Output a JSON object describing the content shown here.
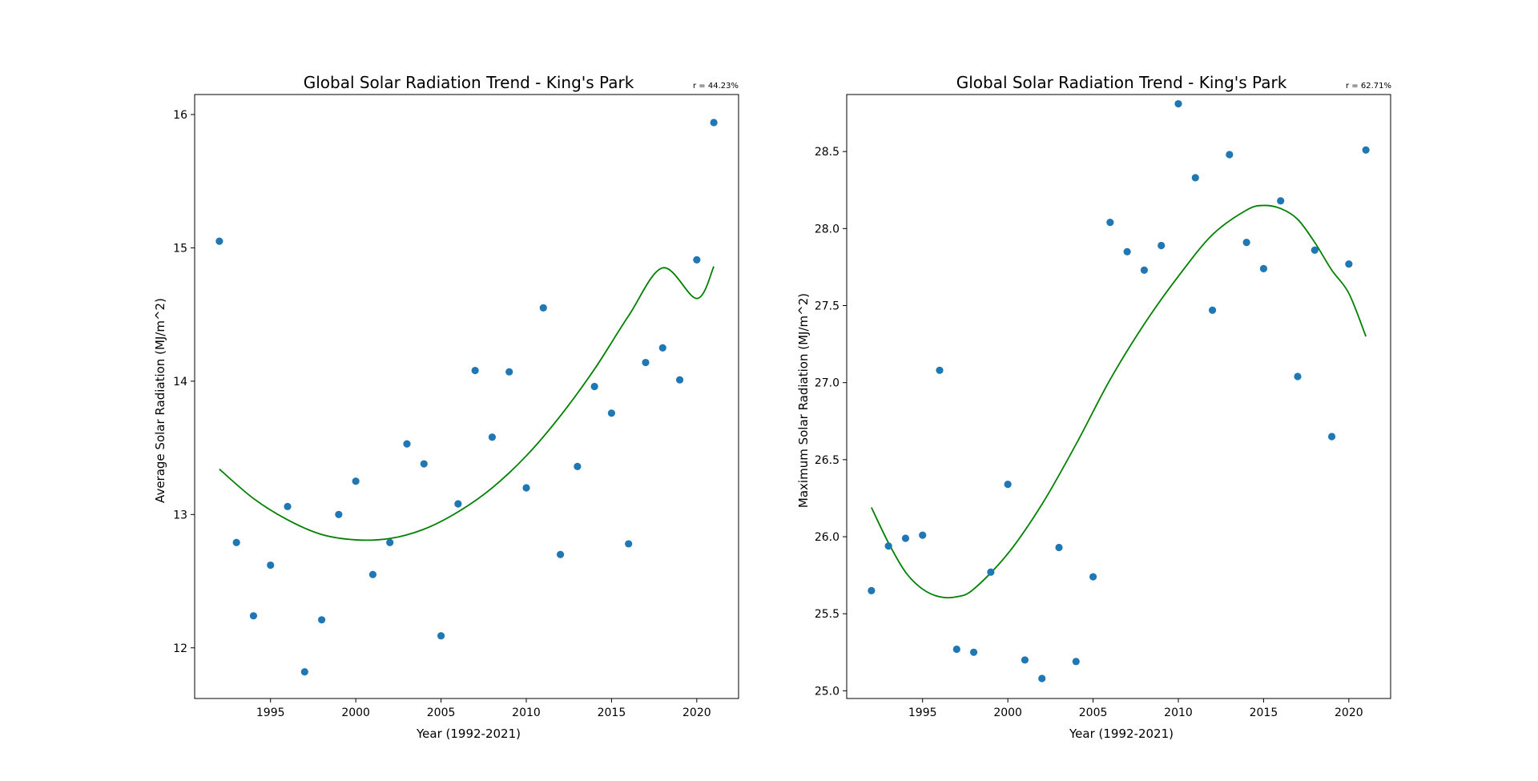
{
  "chart_data": [
    {
      "type": "scatter",
      "title": "Global Solar Radiation Trend - King's Park",
      "annotation": "r = 44.23%",
      "xlabel": "Year (1992-2021)",
      "ylabel": "Average Solar Radiation (MJ/m^2)",
      "xlim": [
        1990.55,
        2022.45
      ],
      "ylim": [
        11.62,
        16.15
      ],
      "xticks": [
        1995,
        2000,
        2005,
        2010,
        2015,
        2020
      ],
      "yticks": [
        12,
        13,
        14,
        15,
        16
      ],
      "grid": false,
      "point_color": "#1f77b4",
      "trend_color": "#008000",
      "series": [
        {
          "x": [
            1992,
            1993,
            1994,
            1995,
            1996,
            1997,
            1998,
            1999,
            2000,
            2001,
            2002,
            2003,
            2004,
            2005,
            2006,
            2007,
            2008,
            2009,
            2010,
            2011,
            2012,
            2013,
            2014,
            2015,
            2016,
            2017,
            2018,
            2019,
            2020,
            2021
          ],
          "y": [
            15.05,
            12.79,
            12.24,
            12.62,
            13.06,
            11.82,
            12.21,
            13.0,
            13.25,
            12.55,
            12.79,
            13.53,
            13.38,
            12.09,
            13.08,
            14.08,
            13.58,
            14.07,
            13.2,
            14.55,
            12.7,
            13.36,
            13.96,
            13.76,
            12.78,
            14.14,
            14.25,
            14.01,
            14.91,
            15.94
          ]
        }
      ],
      "trend": {
        "x": [
          1992,
          1994,
          1996,
          1998,
          2000,
          2002,
          2004,
          2006,
          2008,
          2010,
          2012,
          2014,
          2016,
          2018,
          2020,
          2021
        ],
        "y": [
          13.34,
          13.12,
          12.96,
          12.85,
          12.81,
          12.82,
          12.89,
          13.02,
          13.2,
          13.44,
          13.74,
          14.09,
          14.49,
          14.85,
          14.62,
          14.86
        ]
      }
    },
    {
      "type": "scatter",
      "title": "Global Solar Radiation Trend - King's Park",
      "annotation": "r = 62.71%",
      "xlabel": "Year (1992-2021)",
      "ylabel": "Maximum Solar Radiation (MJ/m^2)",
      "xlim": [
        1990.55,
        2022.45
      ],
      "ylim": [
        24.95,
        28.87
      ],
      "xticks": [
        1995,
        2000,
        2005,
        2010,
        2015,
        2020
      ],
      "yticks": [
        25.0,
        25.5,
        26.0,
        26.5,
        27.0,
        27.5,
        28.0,
        28.5
      ],
      "ytick_labels": [
        "25.0",
        "25.5",
        "26.0",
        "26.5",
        "27.0",
        "27.5",
        "28.0",
        "28.5"
      ],
      "grid": false,
      "point_color": "#1f77b4",
      "trend_color": "#008000",
      "series": [
        {
          "x": [
            1992,
            1993,
            1994,
            1995,
            1996,
            1997,
            1998,
            1999,
            2000,
            2001,
            2002,
            2003,
            2004,
            2005,
            2006,
            2007,
            2008,
            2009,
            2010,
            2011,
            2012,
            2013,
            2014,
            2015,
            2016,
            2017,
            2018,
            2019,
            2020,
            2021
          ],
          "y": [
            25.65,
            25.94,
            25.99,
            26.01,
            27.08,
            25.27,
            25.25,
            25.77,
            26.34,
            25.2,
            25.08,
            25.93,
            25.19,
            25.74,
            28.04,
            27.85,
            27.73,
            27.89,
            28.81,
            28.33,
            27.47,
            28.48,
            27.91,
            27.74,
            28.18,
            27.04,
            27.86,
            26.65,
            27.77,
            28.51
          ]
        }
      ],
      "trend": {
        "x": [
          1992,
          1993,
          1994,
          1995,
          1996,
          1997,
          1998,
          2000,
          2002,
          2004,
          2006,
          2008,
          2010,
          2012,
          2014,
          2015,
          2016,
          2017,
          2018,
          2019,
          2020,
          2021
        ],
        "y": [
          26.19,
          25.96,
          25.77,
          25.66,
          25.61,
          25.61,
          25.66,
          25.89,
          26.21,
          26.6,
          27.02,
          27.38,
          27.69,
          27.96,
          28.12,
          28.15,
          28.13,
          28.06,
          27.91,
          27.73,
          27.58,
          27.3
        ]
      }
    }
  ]
}
